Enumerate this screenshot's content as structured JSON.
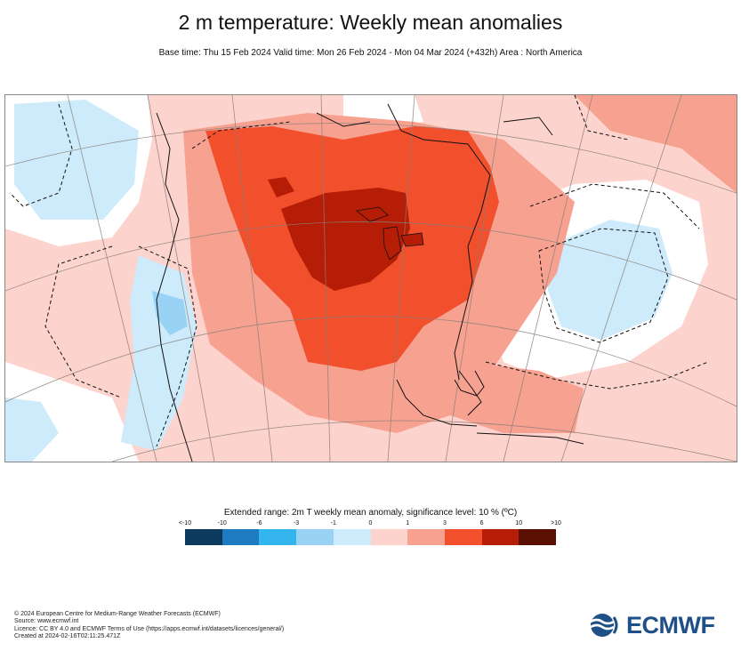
{
  "title": "2 m temperature: Weekly mean anomalies",
  "subtitle": "Base time: Thu 15 Feb 2024 Valid time: Mon 26 Feb 2024 - Mon 04 Mar 2024 (+432h) Area : North America",
  "legend": {
    "title": "Extended range: 2m T weekly mean anomaly, significance level: 10 % (ºC)",
    "ticks": [
      "<-10",
      "-10",
      "-6",
      "-3",
      "-1",
      "0",
      "1",
      "3",
      "6",
      "10",
      ">10"
    ],
    "colors": [
      "#0c3a5e",
      "#1f7bc1",
      "#35b5ee",
      "#98d3f5",
      "#cdebfb",
      "#fdd3cd",
      "#f7a191",
      "#f24f2c",
      "#b51d06",
      "#5c0f03"
    ]
  },
  "map": {
    "land_colors": {
      "warm_light": "#fdd3cd",
      "warm_mid": "#f7a191",
      "warm_strong": "#f24f2c",
      "warm_extreme": "#b51d06",
      "cool_light": "#cdebfb",
      "cool_mid": "#98d3f5"
    }
  },
  "footer": {
    "lines": [
      "© 2024 European Centre for Medium-Range Weather Forecasts (ECMWF)",
      "Source: www.ecmwf.int",
      "Licence: CC BY 4.0 and ECMWF Terms of Use (https://apps.ecmwf.int/datasets/licences/general/)",
      "Created at 2024-02-16T02:11:25.471Z"
    ]
  },
  "logo": {
    "text": "ECMWF"
  }
}
